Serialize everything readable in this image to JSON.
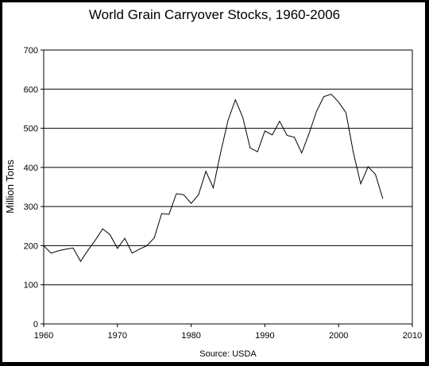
{
  "chart_data": {
    "type": "line",
    "title": "World Grain Carryover Stocks, 1960-2006",
    "xlabel": "",
    "ylabel": "Million Tons",
    "source": "Source: USDA",
    "xlim": [
      1960,
      2010
    ],
    "ylim": [
      0,
      700
    ],
    "xticks": [
      1960,
      1970,
      1980,
      1990,
      2000,
      2010
    ],
    "yticks": [
      0,
      100,
      200,
      300,
      400,
      500,
      600,
      700
    ],
    "grid": "horizontal",
    "legend": "none",
    "line_color": "#000000",
    "series": [
      {
        "x": [
          1960,
          1961,
          1962,
          1963,
          1964,
          1965,
          1966,
          1967,
          1968,
          1969,
          1970,
          1971,
          1972,
          1973,
          1974,
          1975,
          1976,
          1977,
          1978,
          1979,
          1980,
          1981,
          1982,
          1983,
          1984,
          1985,
          1986,
          1987,
          1988,
          1989,
          1990,
          1991,
          1992,
          1993,
          1994,
          1995,
          1996,
          1997,
          1998,
          1999,
          2000,
          2001,
          2002,
          2003,
          2004,
          2005,
          2006
        ],
        "y": [
          200,
          181,
          187,
          191,
          194,
          160,
          188,
          214,
          243,
          228,
          193,
          219,
          181,
          191,
          200,
          220,
          282,
          280,
          333,
          330,
          308,
          330,
          390,
          348,
          438,
          520,
          573,
          528,
          450,
          440,
          493,
          483,
          518,
          482,
          477,
          437,
          487,
          543,
          581,
          587,
          567,
          540,
          438,
          358,
          402,
          382,
          320
        ]
      }
    ]
  }
}
